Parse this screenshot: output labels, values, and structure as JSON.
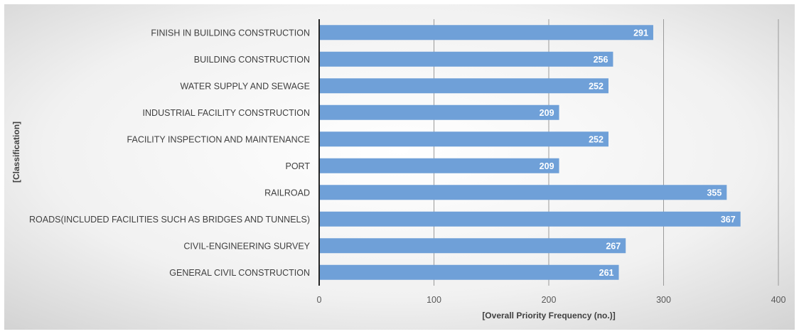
{
  "chart_data": {
    "type": "bar",
    "orientation": "horizontal",
    "categories": [
      "FINISH IN BUILDING CONSTRUCTION",
      "BUILDING CONSTRUCTION",
      "WATER SUPPLY AND SEWAGE",
      "INDUSTRIAL FACILITY CONSTRUCTION",
      "FACILITY INSPECTION AND MAINTENANCE",
      "PORT",
      "RAILROAD",
      "ROADS(INCLUDED FACILITIES SUCH AS BRIDGES AND TUNNELS)",
      "CIVIL-ENGINEERING SURVEY",
      "GENERAL CIVIL CONSTRUCTION"
    ],
    "values": [
      291,
      256,
      252,
      209,
      252,
      209,
      355,
      367,
      267,
      261
    ],
    "xlabel": "[Overall Priority Frequency (no.)]",
    "ylabel": "[Classification]",
    "xlim": [
      0,
      400
    ],
    "xticks": [
      0,
      100,
      200,
      300,
      400
    ],
    "grid": true,
    "legend": "none",
    "bar_color": "#6fa0d8"
  }
}
